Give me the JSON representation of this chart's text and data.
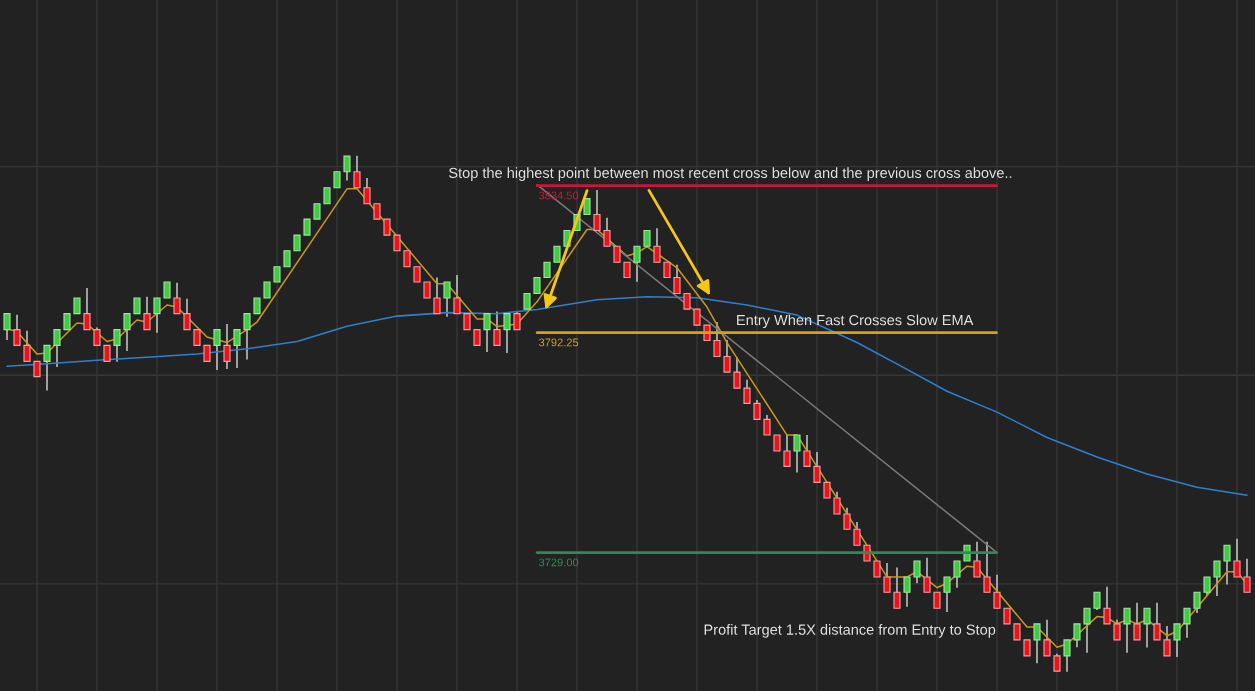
{
  "chart_data": {
    "type": "candlestick",
    "grid": true,
    "ylim": [
      3689.2,
      3887.9
    ],
    "yticks": [
      {
        "value": 3720,
        "label": null
      },
      {
        "value": 3780,
        "label": null
      },
      {
        "value": 3840,
        "label": null
      }
    ],
    "categories": [
      null,
      null,
      null,
      null,
      null,
      null,
      null,
      null,
      null,
      null,
      null,
      null,
      null,
      null,
      null,
      null,
      null,
      null,
      null,
      null,
      null,
      null,
      null,
      null,
      null,
      null,
      null,
      null,
      null,
      null,
      null,
      null,
      null,
      null,
      null,
      null,
      null,
      null,
      null,
      null,
      null,
      null,
      null,
      null,
      null,
      null,
      null,
      null,
      null,
      null,
      null,
      null,
      null,
      null,
      null,
      null,
      null,
      null,
      null,
      null,
      null,
      null,
      null,
      null,
      null,
      null,
      null,
      null,
      null,
      null,
      null,
      null,
      null,
      null,
      null,
      null,
      null,
      null,
      null,
      null,
      null,
      null,
      null,
      null,
      null,
      null,
      null,
      null,
      null,
      null,
      null,
      null,
      null,
      null,
      null,
      null,
      null,
      null,
      null,
      null,
      null,
      null,
      null,
      null,
      null,
      null,
      null,
      null,
      null,
      null,
      null,
      null,
      null,
      null,
      null,
      null,
      null,
      null,
      null,
      null,
      null,
      null,
      null,
      null,
      null
    ],
    "ohlc": [
      [
        3793.1,
        3797.7,
        3790.1,
        3797.7
      ],
      [
        3793.1,
        3797.4,
        3788.6,
        3788.6
      ],
      [
        3788.6,
        3792.8,
        3784.0,
        3784.0
      ],
      [
        3784.0,
        3784.0,
        3779.6,
        3779.6
      ],
      [
        3784.0,
        3788.6,
        3775.6,
        3788.6
      ],
      [
        3788.6,
        3793.1,
        3782.4,
        3793.1
      ],
      [
        3793.1,
        3797.7,
        3793.1,
        3797.7
      ],
      [
        3797.7,
        3802.2,
        3797.7,
        3802.2
      ],
      [
        3797.7,
        3805.1,
        3793.1,
        3793.1
      ],
      [
        3793.1,
        3793.7,
        3788.6,
        3788.6
      ],
      [
        3788.6,
        3788.6,
        3784.0,
        3784.0
      ],
      [
        3788.6,
        3793.1,
        3783.9,
        3793.1
      ],
      [
        3793.1,
        3797.7,
        3787.0,
        3797.7
      ],
      [
        3797.7,
        3802.2,
        3797.7,
        3802.2
      ],
      [
        3797.7,
        3802.6,
        3793.1,
        3793.1
      ],
      [
        3797.7,
        3802.2,
        3792.2,
        3802.2
      ],
      [
        3802.2,
        3806.8,
        3802.2,
        3806.8
      ],
      [
        3802.2,
        3806.6,
        3797.7,
        3797.7
      ],
      [
        3797.7,
        3802.0,
        3793.1,
        3793.1
      ],
      [
        3793.1,
        3793.1,
        3788.6,
        3788.6
      ],
      [
        3788.6,
        3788.6,
        3784.0,
        3784.0
      ],
      [
        3788.6,
        3793.1,
        3781.5,
        3793.1
      ],
      [
        3788.6,
        3794.7,
        3781.8,
        3784.0
      ],
      [
        3788.6,
        3793.1,
        3782.1,
        3793.1
      ],
      [
        3793.1,
        3797.7,
        3784.5,
        3797.7
      ],
      [
        3797.7,
        3802.2,
        3797.7,
        3802.2
      ],
      [
        3802.2,
        3806.8,
        3802.2,
        3806.8
      ],
      [
        3806.8,
        3811.2,
        3806.8,
        3811.2
      ],
      [
        3811.2,
        3815.8,
        3811.2,
        3815.8
      ],
      [
        3815.8,
        3820.3,
        3815.8,
        3820.3
      ],
      [
        3820.3,
        3824.9,
        3820.3,
        3824.9
      ],
      [
        3824.9,
        3829.3,
        3824.9,
        3829.3
      ],
      [
        3829.3,
        3833.9,
        3829.3,
        3833.9
      ],
      [
        3833.9,
        3838.5,
        3833.9,
        3838.5
      ],
      [
        3838.5,
        3843.0,
        3836.0,
        3843.0
      ],
      [
        3838.5,
        3843.1,
        3833.9,
        3833.9
      ],
      [
        3833.9,
        3836.7,
        3829.3,
        3829.3
      ],
      [
        3829.3,
        3829.3,
        3824.9,
        3824.9
      ],
      [
        3824.9,
        3824.9,
        3820.3,
        3820.3
      ],
      [
        3820.3,
        3820.3,
        3815.8,
        3815.8
      ],
      [
        3815.8,
        3815.8,
        3811.2,
        3811.2
      ],
      [
        3811.2,
        3811.2,
        3806.8,
        3806.8
      ],
      [
        3806.8,
        3806.8,
        3802.2,
        3802.2
      ],
      [
        3802.2,
        3808.1,
        3797.7,
        3797.7
      ],
      [
        3802.2,
        3806.8,
        3796.8,
        3806.8
      ],
      [
        3802.2,
        3808.8,
        3797.7,
        3797.7
      ],
      [
        3797.7,
        3797.7,
        3793.1,
        3793.1
      ],
      [
        3793.1,
        3793.1,
        3788.6,
        3788.6
      ],
      [
        3793.1,
        3797.7,
        3786.7,
        3797.7
      ],
      [
        3793.1,
        3798.3,
        3788.6,
        3788.6
      ],
      [
        3793.1,
        3797.7,
        3786.4,
        3797.7
      ],
      [
        3797.7,
        3798.3,
        3793.1,
        3793.1
      ],
      [
        3799.0,
        3803.5,
        3799.0,
        3803.5
      ],
      [
        3803.5,
        3808.1,
        3803.5,
        3808.1
      ],
      [
        3808.1,
        3812.5,
        3808.1,
        3812.5
      ],
      [
        3812.5,
        3817.1,
        3812.5,
        3817.1
      ],
      [
        3817.1,
        3821.6,
        3817.1,
        3821.6
      ],
      [
        3821.6,
        3826.2,
        3821.6,
        3826.2
      ],
      [
        3826.2,
        3830.8,
        3826.2,
        3830.8
      ],
      [
        3826.2,
        3833.3,
        3821.6,
        3821.6
      ],
      [
        3821.6,
        3825.3,
        3817.1,
        3817.1
      ],
      [
        3817.1,
        3817.1,
        3812.5,
        3812.5
      ],
      [
        3812.5,
        3812.5,
        3808.1,
        3808.1
      ],
      [
        3812.5,
        3817.1,
        3806.9,
        3817.1
      ],
      [
        3817.1,
        3821.6,
        3817.1,
        3821.6
      ],
      [
        3817.1,
        3822.3,
        3812.5,
        3812.5
      ],
      [
        3812.5,
        3812.5,
        3808.1,
        3808.1
      ],
      [
        3808.1,
        3811.8,
        3803.5,
        3803.5
      ],
      [
        3803.5,
        3803.5,
        3799.0,
        3799.0
      ],
      [
        3799.0,
        3799.0,
        3794.4,
        3794.4
      ],
      [
        3794.4,
        3794.4,
        3790.0,
        3790.0
      ],
      [
        3790.0,
        3795.3,
        3785.4,
        3785.4
      ],
      [
        3785.4,
        3790.1,
        3780.9,
        3780.9
      ],
      [
        3780.9,
        3785.2,
        3776.3,
        3776.3
      ],
      [
        3776.3,
        3778.7,
        3771.9,
        3771.9
      ],
      [
        3771.9,
        3772.9,
        3767.3,
        3767.3
      ],
      [
        3767.3,
        3768.6,
        3762.8,
        3762.8
      ],
      [
        3762.8,
        3762.8,
        3758.2,
        3758.2
      ],
      [
        3758.2,
        3762.8,
        3753.8,
        3753.8
      ],
      [
        3758.2,
        3762.8,
        3752.0,
        3762.8
      ],
      [
        3758.2,
        3762.8,
        3753.8,
        3753.8
      ],
      [
        3753.8,
        3757.9,
        3749.2,
        3749.2
      ],
      [
        3749.2,
        3749.2,
        3744.7,
        3744.7
      ],
      [
        3744.7,
        3746.5,
        3740.1,
        3740.1
      ],
      [
        3740.1,
        3741.9,
        3735.7,
        3735.7
      ],
      [
        3735.7,
        3737.8,
        3731.1,
        3731.1
      ],
      [
        3731.1,
        3731.1,
        3726.6,
        3726.6
      ],
      [
        3726.6,
        3726.6,
        3722.0,
        3722.0
      ],
      [
        3722.0,
        3726.0,
        3717.6,
        3717.6
      ],
      [
        3717.6,
        3724.7,
        3713.0,
        3713.0
      ],
      [
        3717.6,
        3722.0,
        3713.4,
        3722.0
      ],
      [
        3722.0,
        3726.6,
        3720.2,
        3726.6
      ],
      [
        3722.0,
        3727.5,
        3717.6,
        3717.6
      ],
      [
        3717.6,
        3717.6,
        3713.0,
        3713.0
      ],
      [
        3717.6,
        3722.0,
        3711.9,
        3722.0
      ],
      [
        3722.0,
        3726.6,
        3718.9,
        3726.6
      ],
      [
        3726.6,
        3731.1,
        3726.6,
        3731.1
      ],
      [
        3726.6,
        3732.1,
        3722.0,
        3722.0
      ],
      [
        3722.0,
        3732.1,
        3717.6,
        3717.6
      ],
      [
        3717.6,
        3722.6,
        3713.0,
        3713.0
      ],
      [
        3713.0,
        3713.0,
        3708.5,
        3708.5
      ],
      [
        3708.5,
        3708.5,
        3703.9,
        3703.9
      ],
      [
        3703.9,
        3703.9,
        3699.3,
        3699.3
      ],
      [
        3703.9,
        3708.5,
        3697.2,
        3708.5
      ],
      [
        3703.9,
        3709.7,
        3699.3,
        3699.3
      ],
      [
        3699.3,
        3699.9,
        3694.9,
        3694.9
      ],
      [
        3699.3,
        3703.9,
        3694.7,
        3703.9
      ],
      [
        3703.9,
        3708.5,
        3701.8,
        3708.5
      ],
      [
        3708.5,
        3713.0,
        3700.2,
        3713.0
      ],
      [
        3713.0,
        3717.6,
        3712.5,
        3717.6
      ],
      [
        3713.0,
        3719.2,
        3708.5,
        3708.5
      ],
      [
        3708.5,
        3709.7,
        3703.9,
        3703.9
      ],
      [
        3708.5,
        3713.0,
        3700.2,
        3713.0
      ],
      [
        3708.5,
        3714.6,
        3703.9,
        3703.9
      ],
      [
        3708.5,
        3713.0,
        3701.7,
        3713.0
      ],
      [
        3708.5,
        3714.6,
        3703.9,
        3703.9
      ],
      [
        3703.9,
        3707.9,
        3699.3,
        3699.3
      ],
      [
        3703.9,
        3708.5,
        3699.0,
        3708.5
      ],
      [
        3708.5,
        3713.0,
        3704.5,
        3713.0
      ],
      [
        3713.0,
        3717.6,
        3711.6,
        3717.6
      ],
      [
        3717.6,
        3722.0,
        3716.5,
        3722.0
      ],
      [
        3722.0,
        3726.6,
        3716.5,
        3726.6
      ],
      [
        3726.6,
        3731.1,
        3719.8,
        3731.1
      ],
      [
        3726.6,
        3733.0,
        3722.0,
        3722.0
      ],
      [
        3722.0,
        3727.2,
        3717.6,
        3717.6
      ]
    ],
    "series": [
      {
        "type": "line",
        "color": "#2f7fd0",
        "values": [
          3782.6,
          null,
          null,
          null,
          3783.3,
          null,
          null,
          null,
          null,
          3784.3,
          null,
          null,
          null,
          null,
          3785.2,
          null,
          null,
          null,
          null,
          3786.1,
          null,
          null,
          null,
          null,
          3787.6,
          null,
          null,
          null,
          null,
          3789.7,
          null,
          null,
          null,
          null,
          3794.1,
          null,
          null,
          null,
          null,
          3797.0,
          null,
          null,
          null,
          null,
          3798.0,
          null,
          null,
          null,
          null,
          3797.7,
          null,
          null,
          null,
          3798.9,
          null,
          null,
          null,
          null,
          null,
          3801.7,
          null,
          null,
          null,
          null,
          3802.6,
          null,
          null,
          null,
          null,
          3802.3,
          null,
          null,
          null,
          null,
          3800.2,
          null,
          null,
          null,
          null,
          3797.3,
          null,
          null,
          null,
          null,
          null,
          3789.4,
          null,
          null,
          null,
          null,
          3781.7,
          null,
          null,
          null,
          3775.4,
          null,
          null,
          null,
          null,
          3769.4,
          null,
          null,
          null,
          null,
          3762.1,
          null,
          null,
          null,
          null,
          3756.5,
          null,
          null,
          null,
          null,
          3751.6,
          null,
          null,
          null,
          null,
          3747.8,
          null,
          null,
          null,
          null,
          3745.5
        ]
      },
      {
        "type": "line",
        "color": "#c8961e",
        "values": [
          3793.4,
          3792.5,
          null,
          3786.1,
          3786.4,
          null,
          null,
          3795.0,
          3794.7,
          null,
          3789.7,
          3790.4,
          null,
          3795.9,
          3795.3,
          null,
          3800.2,
          3799.6,
          null,
          null,
          3791.0,
          null,
          3789.4,
          null,
          3793.1,
          3795.3,
          null,
          null,
          null,
          null,
          null,
          null,
          null,
          null,
          3833.6,
          3833.6,
          null,
          null,
          null,
          null,
          null,
          null,
          null,
          3806.3,
          3806.3,
          null,
          null,
          3796.2,
          3796.2,
          3794.0,
          null,
          3794.7,
          null,
          3801.1,
          null,
          null,
          null,
          null,
          3821.9,
          3821.9,
          null,
          null,
          3814.3,
          3815.2,
          3817.0,
          null,
          null,
          3810.9,
          null,
          null,
          3799.6,
          null,
          3789.4,
          null,
          null,
          null,
          null,
          null,
          3762.8,
          3762.8,
          null,
          null,
          null,
          null,
          null,
          null,
          null,
          null,
          3722.0,
          null,
          3722.0,
          3723.5,
          null,
          3718.9,
          3720.2,
          null,
          3725.1,
          3724.8,
          null,
          null,
          null,
          null,
          3707.6,
          3707.6,
          null,
          3701.8,
          3702.7,
          null,
          null,
          3710.6,
          3710.3,
          3708.5,
          3709.7,
          3708.5,
          3709.7,
          null,
          3705.1,
          3706.3,
          null,
          null,
          null,
          null,
          3723.5,
          3723.5,
          3719.9
        ]
      },
      {
        "type": "line",
        "color": "#7a7a7a",
        "values": [
          null,
          null,
          null,
          null,
          null,
          null,
          null,
          null,
          null,
          null,
          null,
          null,
          null,
          null,
          null,
          null,
          null,
          null,
          null,
          null,
          null,
          null,
          null,
          null,
          null,
          null,
          null,
          null,
          null,
          null,
          null,
          null,
          null,
          null,
          null,
          null,
          null,
          null,
          null,
          null,
          null,
          null,
          null,
          null,
          null,
          null,
          null,
          null,
          null,
          null,
          null,
          null,
          null,
          3834.8,
          null,
          null,
          null,
          null,
          null,
          null,
          null,
          null,
          null,
          null,
          null,
          null,
          null,
          null,
          null,
          null,
          null,
          null,
          null,
          null,
          null,
          null,
          null,
          null,
          null,
          null,
          null,
          null,
          null,
          null,
          null,
          null,
          null,
          null,
          null,
          null,
          null,
          null,
          null,
          null,
          null,
          null,
          null,
          null,
          null,
          3729.0,
          null,
          null,
          null,
          null,
          null,
          null,
          null,
          null,
          null,
          null,
          null,
          null,
          null,
          null,
          null,
          null,
          null,
          null,
          null,
          null,
          null,
          null,
          null,
          null,
          null
        ]
      }
    ],
    "ref_lines": [
      {
        "axis": "y",
        "value": 3834.5,
        "label": "3834.50",
        "color": "#c8173a"
      },
      {
        "axis": "y",
        "value": 3792.25,
        "label": "3792.25",
        "color": "#d4a020"
      },
      {
        "axis": "y",
        "value": 3729.0,
        "label": "3729.00",
        "color": "#2e8b57"
      }
    ],
    "annotations": [
      "Stop the highest point between most recent cross below and the previous cross above..",
      "Entry When Fast Crosses Slow EMA",
      "Profit Target 1.5X distance from Entry to Stop"
    ]
  }
}
